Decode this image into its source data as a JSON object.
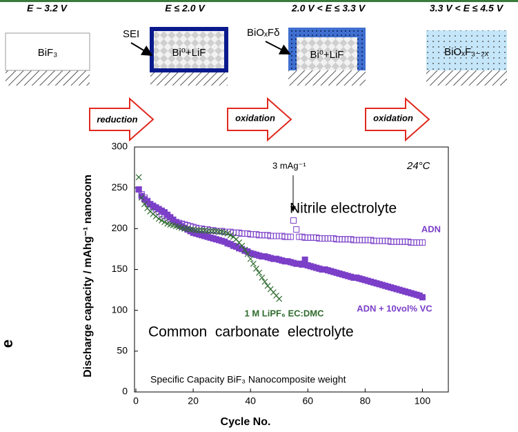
{
  "schematic": {
    "stages": [
      {
        "potential": "E ~ 3.2 V",
        "label": "BiF₃"
      },
      {
        "potential": "E ≤ 2.0 V",
        "label": "Bi⁰+LiF"
      },
      {
        "potential": "2.0 V < E ≤ 3.3 V",
        "label": "Bi⁰+LiF"
      },
      {
        "potential": "3.3 V < E ≤ 4.5 V",
        "label": "BiOₓF₃₋₂ₓ"
      }
    ],
    "arrows": [
      "reduction",
      "oxidation",
      "oxidation"
    ],
    "sei": "SEI",
    "layer": "BiOₓFδ"
  },
  "edge_text": "e",
  "chart_data": {
    "type": "scatter",
    "x_label": "Cycle No.",
    "y_label": "Discharge capacity / mAhg⁻¹ nanocom",
    "annotations": [
      "3 mAg⁻¹",
      "24°C",
      "Nitrile electrolyte",
      "Common  carbonate  electrolyte",
      "Specific Capacity BiF₃ Nanocomposite weight"
    ],
    "xlim": [
      0,
      110
    ],
    "ylim": [
      0,
      300
    ],
    "xticks": [
      0,
      20,
      40,
      60,
      80,
      100
    ],
    "yticks": [
      0,
      50,
      100,
      150,
      200,
      250,
      300
    ],
    "grid": false,
    "x": [
      1,
      2,
      3,
      4,
      5,
      6,
      7,
      8,
      9,
      10,
      11,
      12,
      13,
      14,
      15,
      16,
      17,
      18,
      19,
      20,
      21,
      22,
      23,
      24,
      25,
      26,
      27,
      28,
      29,
      30,
      31,
      32,
      33,
      34,
      35,
      36,
      37,
      38,
      39,
      40,
      41,
      42,
      43,
      44,
      45,
      46,
      47,
      48,
      49,
      50,
      51,
      52,
      53,
      54,
      55,
      56,
      57,
      58,
      59,
      60,
      61,
      62,
      63,
      64,
      65,
      66,
      67,
      68,
      69,
      70,
      71,
      72,
      73,
      74,
      75,
      76,
      77,
      78,
      79,
      80,
      81,
      82,
      83,
      84,
      85,
      86,
      87,
      88,
      89,
      90,
      91,
      92,
      93,
      94,
      95,
      96,
      97,
      98,
      99,
      100
    ],
    "series": [
      {
        "name": "ADN",
        "color": "#7b3fc8",
        "marker": "open-square",
        "values": [
          248,
          242,
          238,
          234,
          230,
          227,
          224,
          221,
          218,
          216,
          214,
          212,
          210,
          208,
          207,
          206,
          205,
          204,
          203,
          202,
          201,
          200,
          200,
          199,
          199,
          198,
          198,
          197,
          197,
          197,
          196,
          196,
          196,
          195,
          195,
          195,
          194,
          194,
          194,
          193,
          193,
          193,
          192,
          192,
          192,
          192,
          191,
          191,
          191,
          191,
          191,
          190,
          190,
          190,
          210,
          199,
          190,
          190,
          189,
          189,
          189,
          189,
          189,
          188,
          188,
          188,
          188,
          188,
          188,
          187,
          187,
          187,
          187,
          187,
          187,
          186,
          186,
          186,
          186,
          186,
          186,
          186,
          185,
          185,
          185,
          185,
          185,
          185,
          184,
          184,
          184,
          184,
          184,
          184,
          184,
          183,
          183,
          183,
          183,
          183
        ]
      },
      {
        "name": "ADN + 10vol% VC",
        "color": "#7b3fc8",
        "marker": "filled-square",
        "values": [
          248,
          240,
          236,
          233,
          230,
          228,
          226,
          224,
          222,
          220,
          217,
          214,
          211,
          208,
          205,
          203,
          201,
          199,
          197,
          195,
          194,
          193,
          192,
          191,
          190,
          189,
          188,
          187,
          186,
          185,
          184,
          182,
          181,
          179,
          178,
          176,
          175,
          173,
          172,
          170,
          169,
          168,
          167,
          166,
          166,
          165,
          164,
          163,
          163,
          162,
          161,
          160,
          160,
          159,
          158,
          157,
          157,
          156,
          162,
          155,
          154,
          153,
          152,
          151,
          150,
          150,
          149,
          148,
          147,
          146,
          145,
          144,
          143,
          142,
          141,
          140,
          140,
          139,
          138,
          137,
          136,
          135,
          134,
          133,
          132,
          131,
          130,
          129,
          128,
          127,
          126,
          125,
          124,
          123,
          122,
          121,
          120,
          119,
          118,
          116
        ]
      },
      {
        "name": "1 M LiPF₆ EC:DMC",
        "color": "#2e6b2e",
        "marker": "cross",
        "values": [
          263,
          238,
          230,
          225,
          221,
          218,
          215,
          212,
          210,
          208,
          206,
          205,
          204,
          203,
          202,
          201,
          200,
          200,
          199,
          199,
          198,
          198,
          198,
          198,
          197,
          197,
          197,
          197,
          196,
          196,
          195,
          194,
          192,
          190,
          187,
          183,
          179,
          174,
          169,
          163,
          157,
          151,
          146,
          140,
          135,
          130,
          126,
          122,
          118,
          114,
          null,
          null,
          null,
          null,
          null,
          null,
          null,
          null,
          null,
          null,
          null,
          null,
          null,
          null,
          null,
          null,
          null,
          null,
          null,
          null,
          null,
          null,
          null,
          null,
          null,
          null,
          null,
          null,
          null,
          null,
          null,
          null,
          null,
          null,
          null,
          null,
          null,
          null,
          null,
          null,
          null,
          null,
          null,
          null,
          null,
          null,
          null,
          null,
          null,
          null
        ]
      }
    ]
  }
}
